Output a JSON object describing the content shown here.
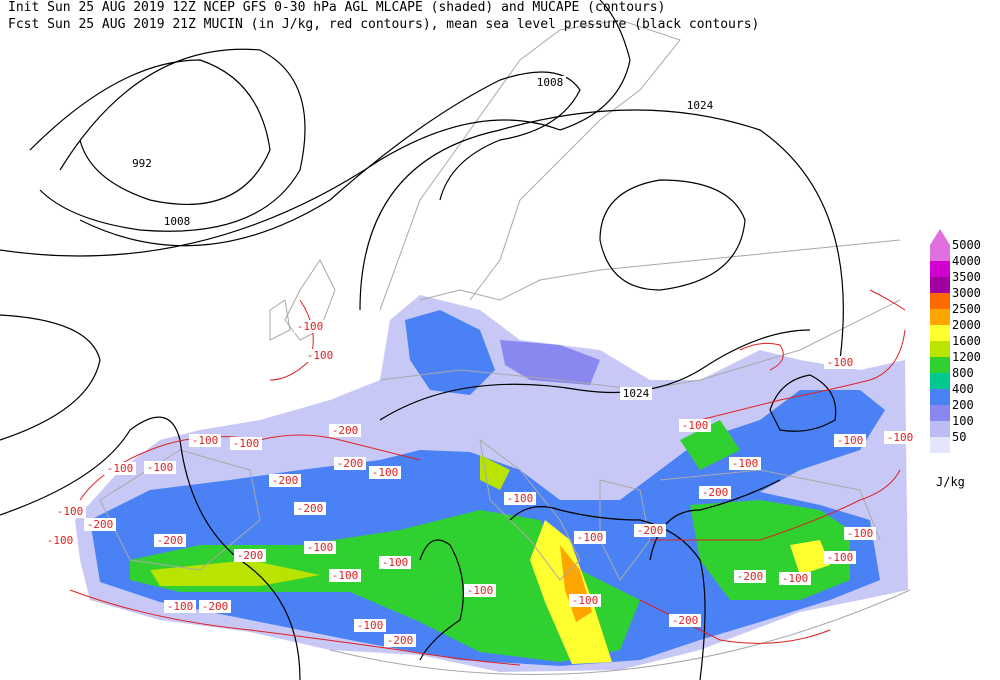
{
  "header": {
    "line1": "Init  Sun 25 AUG 2019 12Z  NCEP GFS 0-30 hPa AGL MLCAPE (shaded) and MUCAPE (contours)",
    "line2": "Fcst Sun 25 AUG 2019 21Z  MUCIN (in J/kg, red contours), mean sea level pressure (black contours)"
  },
  "legend": {
    "unit": "J/kg",
    "items": [
      {
        "value": 5000,
        "color": "#e070e0"
      },
      {
        "value": 4000,
        "color": "#d000d0"
      },
      {
        "value": 3500,
        "color": "#a000a0"
      },
      {
        "value": 3000,
        "color": "#ff6a00"
      },
      {
        "value": 2500,
        "color": "#ffa500"
      },
      {
        "value": 2000,
        "color": "#ffff30"
      },
      {
        "value": 1600,
        "color": "#b8e400"
      },
      {
        "value": 1200,
        "color": "#30d030"
      },
      {
        "value": 800,
        "color": "#00c890"
      },
      {
        "value": 400,
        "color": "#4a82f5"
      },
      {
        "value": 200,
        "color": "#8888f0"
      },
      {
        "value": 100,
        "color": "#bcbcf4"
      },
      {
        "value": 50,
        "color": "#e4e4fa"
      }
    ]
  },
  "isobar_labels": [
    1008,
    1024,
    992,
    1008,
    1024
  ],
  "cin_labels": [
    -100,
    -100,
    -100,
    -100,
    -100,
    -100,
    -200,
    -100,
    -200,
    -200,
    -200,
    -100,
    -200,
    -100,
    -200,
    -200,
    -100,
    -100,
    -100,
    -100,
    -100,
    -100,
    -100,
    -200,
    -100,
    -100,
    -200,
    -200,
    -200,
    -100,
    -100,
    -100,
    -100,
    -100,
    -200,
    -100,
    -100,
    -100,
    -200
  ]
}
